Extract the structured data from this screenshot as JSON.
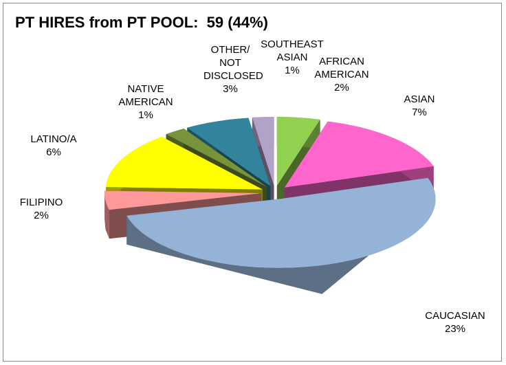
{
  "chart_data": {
    "type": "pie3d",
    "title": "PT HIRES from PT POOL:  59 (44%)",
    "categories": [
      "AFRICAN AMERICAN",
      "ASIAN",
      "CAUCASIAN",
      "FILIPINO",
      "LATINO/A",
      "NATIVE AMERICAN",
      "OTHER/ NOT DISCLOSED",
      "SOUTHEAST ASIAN"
    ],
    "values": [
      2,
      7,
      23,
      2,
      6,
      1,
      3,
      1
    ],
    "value_labels": [
      "2%",
      "7%",
      "23%",
      "2%",
      "6%",
      "1%",
      "3%",
      "1%"
    ],
    "colors": [
      "#92d050",
      "#ff66cc",
      "#95b3d7",
      "#ff9999",
      "#ffff00",
      "#77933c",
      "#31849b",
      "#b3a2c7"
    ],
    "exploded": true
  }
}
